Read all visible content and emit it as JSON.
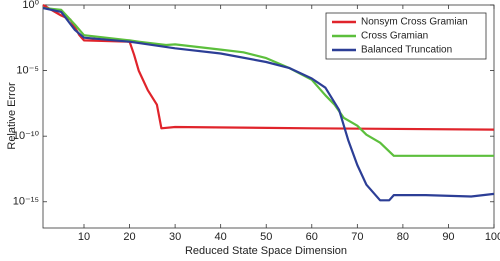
{
  "chart_data": {
    "type": "line",
    "x_label": "Reduced State Space Dimension",
    "y_label": "Relative Error",
    "log_y": true,
    "legend": "top-right",
    "xlim": [
      1,
      100
    ],
    "xticks": [
      10,
      20,
      30,
      40,
      50,
      60,
      70,
      80,
      90,
      100
    ],
    "ylim": [
      1e-17,
      1
    ],
    "yticks": [
      {
        "value": 1,
        "label": "10⁰"
      },
      {
        "value": 1e-05,
        "label": "10⁻⁵"
      },
      {
        "value": 1e-10,
        "label": "10⁻¹⁰"
      },
      {
        "value": 1e-15,
        "label": "10⁻¹⁵"
      }
    ],
    "series": [
      {
        "name": "Nonsym Cross Gramian",
        "color": "#e0242b",
        "x": [
          1,
          5,
          7,
          9,
          10,
          20,
          21,
          22,
          24,
          26,
          27,
          30,
          60,
          100
        ],
        "values": [
          1,
          0.158,
          0.079,
          0.005,
          0.002,
          0.0016,
          0.00016,
          1e-05,
          3.2e-07,
          2.5e-08,
          4e-10,
          5e-10,
          4e-10,
          3.2e-10
        ]
      },
      {
        "name": "Cross Gramian",
        "color": "#5cbf3c",
        "x": [
          1,
          5,
          8,
          10,
          20,
          22,
          28,
          30,
          40,
          45,
          50,
          55,
          60,
          63,
          65,
          67,
          70,
          72,
          75,
          78,
          80,
          100
        ],
        "values": [
          0.59,
          0.42,
          0.032,
          0.005,
          0.002,
          0.0016,
          0.0009,
          0.001,
          0.0004,
          0.00025,
          9e-05,
          1.6e-05,
          2e-06,
          1.3e-07,
          2.5e-08,
          2.5e-09,
          6.3e-10,
          1.3e-10,
          3.2e-11,
          3.2e-12,
          3.2e-12,
          3.2e-12
        ]
      },
      {
        "name": "Balanced Truncation",
        "color": "#2c3e96",
        "x": [
          1,
          5,
          8,
          10,
          20,
          30,
          40,
          50,
          55,
          60,
          63,
          66,
          68,
          70,
          72,
          75,
          77,
          78,
          85,
          95,
          100
        ],
        "values": [
          0.59,
          0.3,
          0.0126,
          0.0032,
          0.0016,
          0.0005,
          0.0002,
          4.5e-05,
          1.6e-05,
          2.5e-06,
          5e-07,
          1e-08,
          5e-11,
          6.3e-13,
          2e-14,
          1.3e-15,
          1.3e-15,
          3.2e-15,
          3.2e-15,
          2.5e-15,
          4e-15
        ]
      }
    ]
  }
}
